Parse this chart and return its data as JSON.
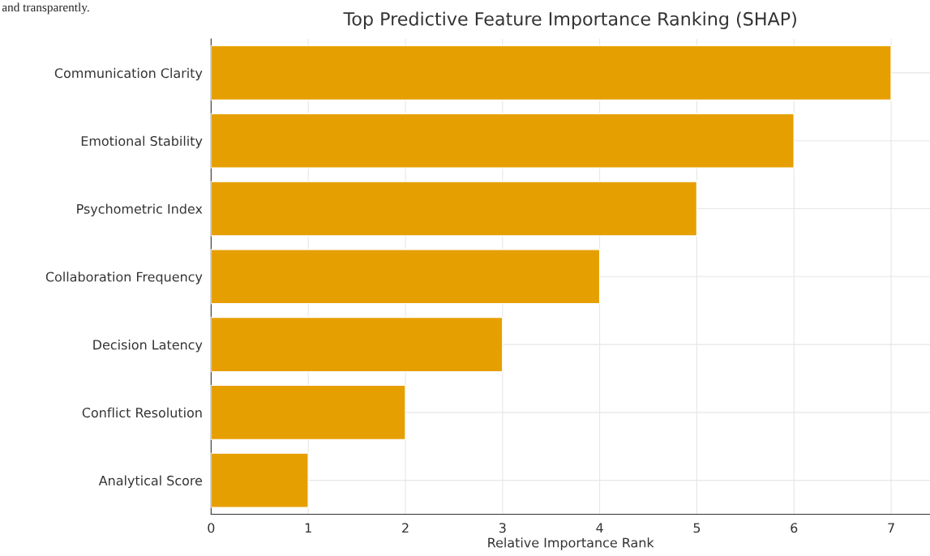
{
  "chart_data": {
    "type": "bar",
    "orientation": "horizontal",
    "title": "Top Predictive Feature Importance Ranking (SHAP)",
    "xlabel": "Relative Importance Rank",
    "categories": [
      "Communication Clarity",
      "Emotional Stability",
      "Psychometric Index",
      "Collaboration Frequency",
      "Decision Latency",
      "Conflict Resolution",
      "Analytical Score"
    ],
    "values": [
      7,
      6,
      5,
      4,
      3,
      2,
      1
    ],
    "color": "#e69f00",
    "xlim": [
      0,
      7.4
    ],
    "xticks": [
      0,
      1,
      2,
      3,
      4,
      5,
      6,
      7
    ],
    "grid": true,
    "annotations": [
      "and transparently."
    ]
  }
}
